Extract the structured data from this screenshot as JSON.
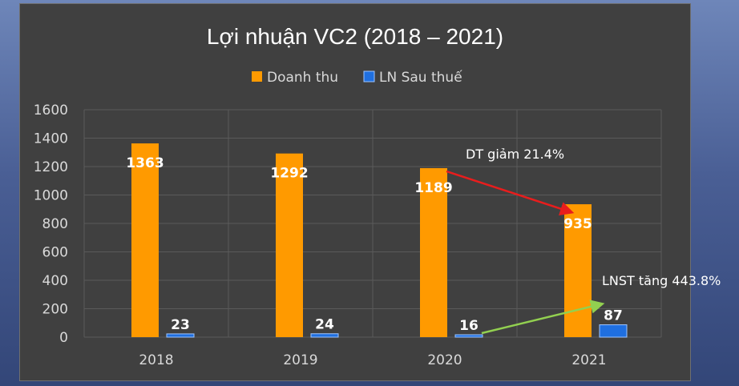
{
  "chart_data": {
    "type": "bar",
    "title": "Lợi nhuận VC2 (2018 – 2021)",
    "categories": [
      "2018",
      "2019",
      "2020",
      "2021"
    ],
    "series": [
      {
        "name": "Doanh thu",
        "color": "#ff9a00",
        "values": [
          1363,
          1292,
          1189,
          935
        ]
      },
      {
        "name": "LN Sau thuế",
        "color": "#1f6fe0",
        "values": [
          23,
          24,
          16,
          87
        ]
      }
    ],
    "ylim": [
      0,
      1600
    ],
    "yticks": [
      0,
      200,
      400,
      600,
      800,
      1000,
      1200,
      1400,
      1600
    ],
    "xlabel": "",
    "ylabel": "",
    "legend": "top-center",
    "grid": true,
    "annotations": [
      {
        "text": "DT giảm 21.4%",
        "series": "Doanh thu",
        "from": "2020",
        "to": "2021",
        "arrow_color": "#e81d1d"
      },
      {
        "text": "LNST tăng 443.8%",
        "series": "LN Sau thuế",
        "from": "2020",
        "to": "2021",
        "arrow_color": "#92d050"
      }
    ]
  }
}
